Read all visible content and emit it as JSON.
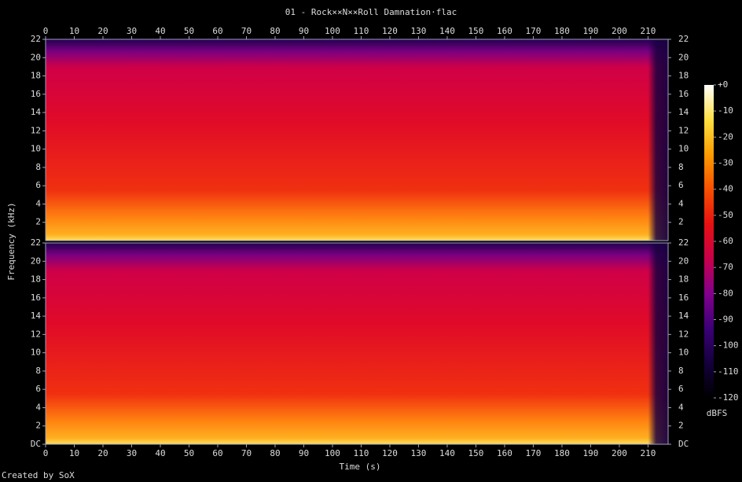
{
  "chart_data": {
    "type": "spectrogram",
    "title": "01 - Rock××N××Roll Damnation·flac",
    "x_label": "Time (s)",
    "y_label": "Frequency (kHz)",
    "xlim": [
      0,
      217
    ],
    "xticks": [
      0,
      10,
      20,
      30,
      40,
      50,
      60,
      70,
      80,
      90,
      100,
      110,
      120,
      130,
      140,
      150,
      160,
      170,
      180,
      190,
      200,
      210
    ],
    "ylim": [
      0,
      22
    ],
    "panels": [
      {
        "yticks": [
          2,
          4,
          6,
          8,
          10,
          12,
          14,
          16,
          18,
          20,
          22
        ]
      },
      {
        "yticks": [
          {
            "value": 0,
            "label": "DC"
          },
          2,
          4,
          6,
          8,
          10,
          12,
          14,
          16,
          18,
          20,
          22
        ]
      }
    ],
    "colorbar": {
      "label": "dBFS",
      "lim": [
        -120,
        0
      ],
      "ticks": [
        {
          "value": 0,
          "label": "+0"
        },
        -10,
        -20,
        -30,
        -40,
        -50,
        -60,
        -70,
        -80,
        -90,
        -100,
        -110,
        -120
      ],
      "colors": [
        "#000000",
        "#14003c",
        "#3c0078",
        "#82008c",
        "#c8004a",
        "#e81010",
        "#f85000",
        "#fc9c00",
        "#fde040",
        "#ffffff"
      ]
    }
  },
  "footer": "Created by SoX"
}
